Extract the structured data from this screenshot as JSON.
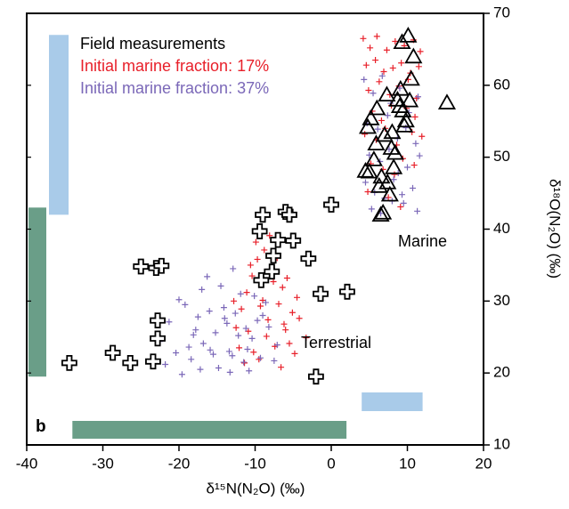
{
  "chart_data": {
    "type": "scatter",
    "panel_label": "b",
    "x_label": "δ¹⁵N(N₂O) (‰)",
    "y_label": "δ¹⁸O(N₂O) (‰)",
    "xlim": [
      -40,
      20
    ],
    "ylim": [
      10,
      70
    ],
    "xticks": [
      -40,
      -30,
      -20,
      -10,
      0,
      10,
      20
    ],
    "yticks": [
      10,
      20,
      30,
      40,
      50,
      60,
      70
    ],
    "y_axis_side": "right",
    "annotations": [
      "Marine",
      "Terrestrial"
    ],
    "ranges": [
      {
        "axis": "y",
        "range": [
          42,
          67
        ],
        "color": "#a9cbe9"
      },
      {
        "axis": "y",
        "range": [
          19.5,
          43
        ],
        "color": "#6a9e88"
      },
      {
        "axis": "x",
        "range": [
          -34,
          2
        ],
        "color": "#6a9e88"
      },
      {
        "axis": "x",
        "range": [
          4,
          12
        ],
        "color": "#a9cbe9"
      }
    ],
    "series": [
      {
        "name": "Initial marine fraction: 17%",
        "color": "#e8202a",
        "marker": "plus",
        "x": [
          4.2,
          5.1,
          6.0,
          7.3,
          8.4,
          9.6,
          10.8,
          11.7,
          4.6,
          5.8,
          6.9,
          8.1,
          9.2,
          10.4,
          11.5,
          4.9,
          6.3,
          7.7,
          8.9,
          10.1,
          11.2,
          5.4,
          6.6,
          7.9,
          9.9,
          11.0,
          4.4,
          5.9,
          7.1,
          8.6,
          10.6,
          11.9,
          5.2,
          6.8,
          8.3,
          9.4,
          10.9,
          4.8,
          7.5,
          9.1,
          -12.5,
          -11.8,
          -11.1,
          -10.4,
          -9.7,
          -9.0,
          -8.3,
          -7.6,
          -6.9,
          -6.2,
          -5.5,
          -4.8,
          -12.1,
          -10.9,
          -9.9,
          -8.8,
          -7.9,
          -7.1,
          -6.4,
          -5.1,
          -4.2,
          -3.3,
          -11.4,
          -10.2,
          -9.3,
          -8.5,
          -7.4,
          -6.6,
          -5.8,
          -4.5,
          -12.8,
          -10.6,
          -9.5,
          -8.1,
          -6.0
        ],
        "values": [
          66.5,
          65.2,
          66.8,
          64.9,
          66.1,
          65.5,
          66.3,
          64.7,
          62.8,
          63.5,
          61.9,
          62.4,
          63.1,
          61.7,
          62.6,
          59.3,
          60.5,
          58.7,
          59.9,
          60.8,
          58.2,
          56.4,
          55.1,
          57.2,
          56.8,
          55.6,
          53.2,
          52.4,
          54.0,
          51.7,
          53.5,
          52.9,
          49.1,
          48.3,
          47.6,
          49.8,
          48.9,
          45.2,
          44.4,
          43.1,
          26.3,
          28.9,
          31.2,
          33.5,
          35.8,
          30.1,
          27.4,
          32.7,
          29.6,
          26.8,
          24.1,
          22.7,
          23.5,
          25.8,
          38.2,
          37.1,
          34.4,
          36.0,
          31.9,
          28.4,
          27.6,
          24.9,
          21.4,
          22.9,
          29.3,
          25.1,
          23.7,
          20.8,
          33.2,
          30.5,
          30.0,
          35.0,
          21.9,
          39.1,
          26.0
        ]
      },
      {
        "name": "Initial marine fraction: 37%",
        "color": "#7b68b8",
        "marker": "plus",
        "x": [
          4.3,
          5.5,
          6.7,
          7.8,
          9.0,
          10.2,
          11.4,
          4.7,
          6.1,
          7.4,
          8.7,
          9.8,
          11.1,
          5.0,
          6.4,
          7.6,
          8.8,
          10.0,
          11.6,
          4.5,
          5.7,
          7.0,
          8.2,
          9.5,
          10.7,
          5.3,
          6.5,
          8.0,
          9.3,
          11.3,
          -22.5,
          -21.3,
          -20.4,
          -19.2,
          -18.1,
          -17.0,
          -15.9,
          -14.8,
          -13.7,
          -12.6,
          -11.5,
          -10.4,
          -9.3,
          -8.2,
          -7.1,
          -21.8,
          -20.0,
          -18.7,
          -17.5,
          -16.3,
          -15.2,
          -14.1,
          -13.0,
          -11.9,
          -10.8,
          -9.7,
          -8.6,
          -7.5,
          -16.8,
          -12.2,
          -19.6,
          -18.4,
          -17.2,
          -16.0,
          -14.5,
          -13.4,
          -12.9,
          -11.2,
          -10.1,
          -15.5,
          -14.0,
          -17.8,
          -13.3,
          -11.0,
          -9.0
        ],
        "values": [
          60.8,
          58.9,
          61.3,
          57.5,
          59.6,
          56.2,
          58.4,
          54.7,
          53.9,
          55.8,
          52.6,
          54.1,
          51.9,
          50.3,
          49.4,
          51.1,
          47.8,
          48.6,
          50.2,
          46.5,
          45.1,
          44.3,
          46.9,
          43.6,
          45.7,
          42.8,
          42.2,
          43.9,
          44.8,
          42.5,
          24.4,
          27.1,
          22.8,
          29.5,
          25.3,
          31.6,
          23.2,
          20.7,
          26.9,
          28.3,
          21.5,
          24.8,
          22.1,
          26.4,
          23.9,
          21.2,
          30.2,
          23.6,
          27.8,
          33.4,
          25.6,
          29.1,
          22.4,
          31.0,
          20.3,
          27.3,
          29.8,
          21.7,
          24.1,
          25.2,
          19.8,
          21.9,
          20.5,
          28.6,
          32.1,
          23.0,
          34.5,
          26.2,
          30.7,
          22.6,
          27.6,
          26.0,
          20.1,
          23.3,
          28.0
        ]
      },
      {
        "name": "Field measurements",
        "color": "#000000",
        "marker": "cross",
        "x": [
          -34.4,
          -28.7,
          -26.4,
          -23.4,
          -25.0,
          -23.0,
          -22.3,
          -22.8,
          -22.8,
          -9.4,
          -9.0,
          -6.0,
          -5.5,
          -7.0,
          -5.0,
          -7.6,
          -3.0,
          -7.8,
          -9.2,
          -1.4,
          2.1,
          0.0,
          -2.0
        ],
        "values": [
          21.4,
          22.8,
          21.4,
          21.6,
          34.8,
          34.6,
          34.9,
          27.3,
          24.8,
          39.7,
          42.0,
          42.4,
          42.0,
          38.5,
          38.4,
          36.3,
          35.9,
          34.1,
          32.9,
          31.0,
          31.3,
          43.4,
          19.5
        ]
      },
      {
        "color": "#000000",
        "marker": "triangle",
        "x": [
          4.5,
          5.2,
          5.9,
          6.6,
          7.3,
          8.0,
          8.7,
          9.4,
          10.1,
          10.8,
          4.8,
          5.6,
          6.3,
          7.0,
          7.7,
          8.4,
          9.1,
          9.8,
          10.5,
          5.0,
          6.0,
          7.4,
          8.2,
          9.0,
          9.6,
          6.8,
          7.9,
          9.3,
          10.3,
          6.5,
          15.2
        ],
        "values": [
          48.0,
          55.3,
          51.8,
          47.2,
          58.6,
          53.4,
          57.9,
          56.4,
          66.8,
          63.9,
          54.1,
          49.6,
          45.9,
          53.0,
          44.7,
          50.5,
          59.4,
          55.0,
          60.8,
          47.9,
          56.7,
          46.4,
          48.5,
          57.0,
          54.3,
          42.2,
          51.2,
          65.9,
          57.8,
          41.9,
          57.5
        ]
      }
    ]
  }
}
